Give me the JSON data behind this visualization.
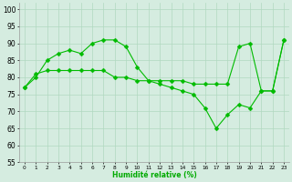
{
  "line_upper": [
    77,
    80,
    85,
    87,
    88,
    87,
    90,
    91,
    91,
    89,
    83,
    79,
    79,
    79,
    79,
    78,
    78,
    78,
    78,
    89,
    90,
    76,
    76,
    91
  ],
  "line_lower": [
    77,
    81,
    82,
    82,
    82,
    82,
    82,
    82,
    80,
    80,
    79,
    79,
    78,
    77,
    76,
    75,
    71,
    65,
    69,
    72,
    71,
    76,
    76,
    91
  ],
  "x": [
    0,
    1,
    2,
    3,
    4,
    5,
    6,
    7,
    8,
    9,
    10,
    11,
    12,
    13,
    14,
    15,
    16,
    17,
    18,
    19,
    20,
    21,
    22,
    23
  ],
  "xlim": [
    -0.5,
    23.5
  ],
  "ylim": [
    55,
    102
  ],
  "yticks": [
    55,
    60,
    65,
    70,
    75,
    80,
    85,
    90,
    95,
    100
  ],
  "bg_color": "#d5ece0",
  "grid_color": "#b0d8c0",
  "line_color": "#00bb00",
  "xlabel": "Humidité relative (%)",
  "xlabel_color": "#00aa00",
  "xtick_labels": [
    "0",
    "1",
    "2",
    "3",
    "4",
    "5",
    "6",
    "7",
    "8",
    "9",
    "10",
    "11",
    "12",
    "13",
    "14",
    "15",
    "16",
    "17",
    "18",
    "19",
    "20",
    "21",
    "22",
    "23"
  ]
}
